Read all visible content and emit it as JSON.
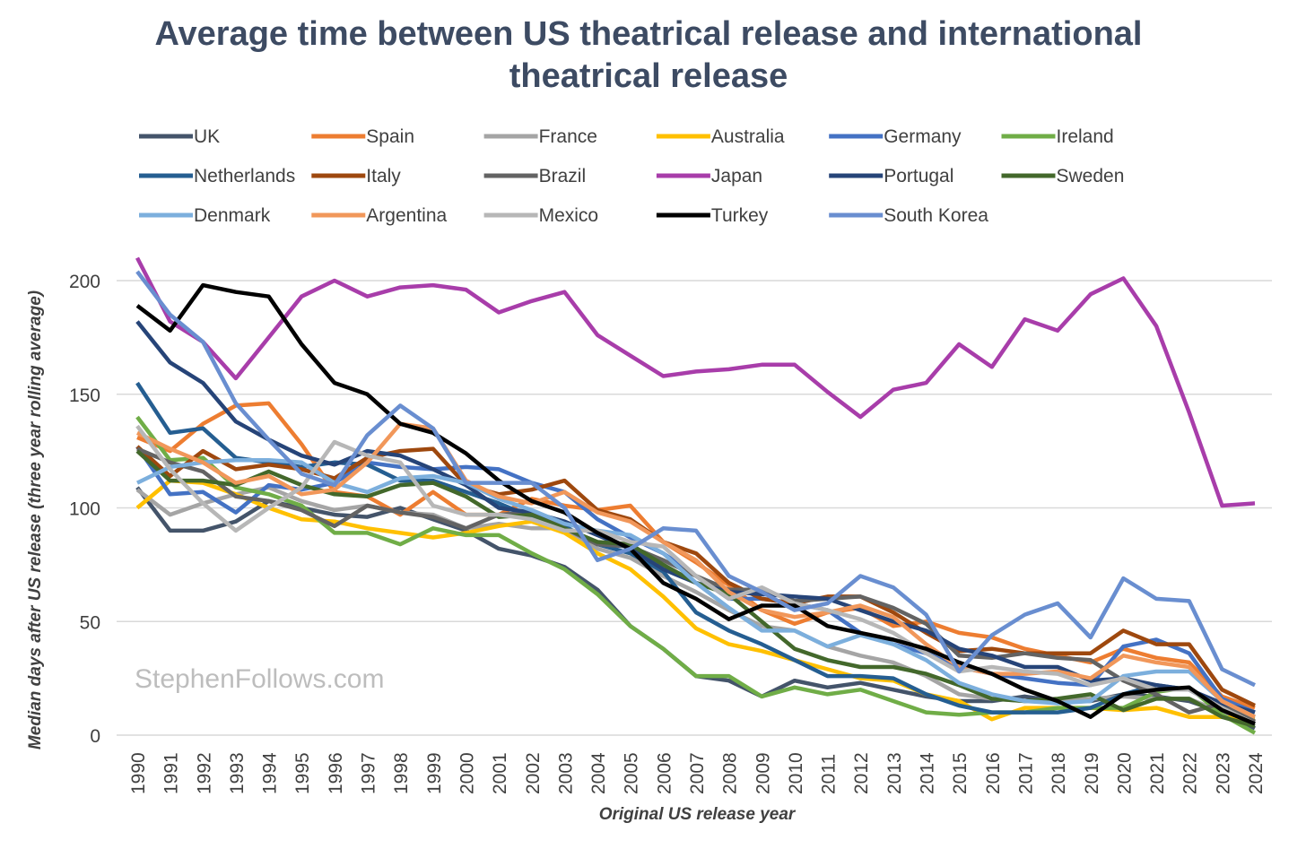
{
  "chart_data": {
    "type": "line",
    "title": "Average time between US theatrical release and international theatrical release",
    "title_lines": [
      "Average time between US theatrical release and international",
      "theatrical release"
    ],
    "xlabel": "Original US release year",
    "ylabel": "Median days after US release (three year rolling average)",
    "watermark": "StephenFollows.com",
    "ylim": [
      0,
      215
    ],
    "yticks": [
      0,
      50,
      100,
      150,
      200
    ],
    "grid": true,
    "legend_position": "top",
    "x": [
      1990,
      1991,
      1992,
      1993,
      1994,
      1995,
      1996,
      1997,
      1998,
      1999,
      2000,
      2001,
      2002,
      2003,
      2004,
      2005,
      2006,
      2007,
      2008,
      2009,
      2010,
      2011,
      2012,
      2013,
      2014,
      2015,
      2016,
      2017,
      2018,
      2019,
      2020,
      2021,
      2022,
      2023,
      2024
    ],
    "series": [
      {
        "name": "UK",
        "color": "#44546A",
        "values": [
          109,
          90,
          90,
          94,
          103,
          100,
          97,
          96,
          100,
          95,
          90,
          82,
          79,
          74,
          64,
          48,
          38,
          26,
          24,
          17,
          24,
          21,
          23,
          20,
          17,
          15,
          15,
          17,
          15,
          15,
          18,
          17,
          15,
          10,
          3
        ]
      },
      {
        "name": "Spain",
        "color": "#ED7D31",
        "values": [
          131,
          125,
          137,
          145,
          146,
          128,
          107,
          105,
          97,
          107,
          97,
          97,
          104,
          101,
          99,
          101,
          85,
          76,
          66,
          55,
          49,
          54,
          56,
          48,
          50,
          45,
          43,
          38,
          35,
          32,
          38,
          34,
          32,
          17,
          12
        ]
      },
      {
        "name": "France",
        "color": "#A5A5A5",
        "values": [
          108,
          97,
          102,
          106,
          109,
          103,
          99,
          101,
          98,
          97,
          91,
          93,
          91,
          91,
          82,
          78,
          70,
          63,
          55,
          48,
          46,
          39,
          35,
          32,
          26,
          18,
          16,
          15,
          15,
          16,
          17,
          16,
          16,
          10,
          5
        ]
      },
      {
        "name": "Australia",
        "color": "#FFC000",
        "values": [
          100,
          112,
          111,
          106,
          100,
          95,
          94,
          91,
          89,
          87,
          89,
          92,
          94,
          89,
          80,
          73,
          61,
          47,
          40,
          37,
          33,
          29,
          25,
          24,
          18,
          15,
          7,
          12,
          12,
          12,
          11,
          12,
          8,
          8,
          7
        ]
      },
      {
        "name": "Germany",
        "color": "#4472C4",
        "values": [
          127,
          106,
          107,
          98,
          110,
          108,
          111,
          120,
          118,
          117,
          118,
          117,
          111,
          107,
          95,
          87,
          80,
          70,
          60,
          60,
          58,
          55,
          45,
          40,
          36,
          30,
          27,
          25,
          23,
          22,
          39,
          42,
          36,
          16,
          10
        ]
      },
      {
        "name": "Ireland",
        "color": "#70AD47",
        "values": [
          140,
          121,
          122,
          109,
          106,
          101,
          89,
          89,
          84,
          91,
          88,
          88,
          80,
          73,
          62,
          48,
          38,
          26,
          26,
          17,
          21,
          18,
          20,
          15,
          10,
          9,
          10,
          10,
          12,
          12,
          12,
          19,
          21,
          9,
          1
        ]
      },
      {
        "name": "Netherlands",
        "color": "#255E91",
        "values": [
          155,
          133,
          135,
          122,
          120,
          118,
          120,
          119,
          112,
          112,
          107,
          102,
          96,
          92,
          84,
          80,
          72,
          54,
          46,
          40,
          33,
          26,
          26,
          25,
          18,
          13,
          10,
          10,
          10,
          12,
          18,
          22,
          20,
          12,
          8
        ]
      },
      {
        "name": "Italy",
        "color": "#9E480E",
        "values": [
          127,
          114,
          125,
          117,
          119,
          117,
          113,
          122,
          125,
          126,
          110,
          106,
          108,
          112,
          99,
          95,
          85,
          80,
          67,
          60,
          58,
          61,
          61,
          54,
          45,
          37,
          38,
          36,
          36,
          36,
          46,
          40,
          40,
          20,
          13
        ]
      },
      {
        "name": "Brazil",
        "color": "#636363",
        "values": [
          126,
          120,
          116,
          105,
          103,
          99,
          92,
          101,
          98,
          96,
          91,
          97,
          98,
          91,
          84,
          83,
          77,
          70,
          64,
          64,
          59,
          60,
          61,
          56,
          49,
          35,
          34,
          36,
          34,
          33,
          24,
          18,
          10,
          14,
          6
        ]
      },
      {
        "name": "Japan",
        "color": "#A83DAA",
        "values": [
          210,
          182,
          173,
          157,
          175,
          193,
          200,
          193,
          197,
          198,
          196,
          186,
          191,
          195,
          176,
          167,
          158,
          160,
          161,
          163,
          163,
          151,
          140,
          152,
          155,
          172,
          162,
          183,
          178,
          194,
          201,
          180,
          142,
          101,
          102
        ]
      },
      {
        "name": "Portugal",
        "color": "#264478",
        "values": [
          182,
          164,
          155,
          138,
          130,
          123,
          119,
          125,
          123,
          117,
          110,
          100,
          98,
          94,
          88,
          82,
          73,
          67,
          63,
          62,
          61,
          60,
          55,
          50,
          46,
          38,
          35,
          30,
          30,
          24,
          25,
          22,
          20,
          14,
          10
        ]
      },
      {
        "name": "Sweden",
        "color": "#43682B",
        "values": [
          125,
          112,
          112,
          110,
          116,
          110,
          106,
          105,
          110,
          111,
          105,
          96,
          97,
          91,
          85,
          84,
          75,
          67,
          62,
          50,
          38,
          33,
          30,
          30,
          27,
          22,
          16,
          15,
          16,
          18,
          11,
          16,
          16,
          8,
          4
        ]
      },
      {
        "name": "Denmark",
        "color": "#7CAFDD",
        "values": [
          111,
          118,
          120,
          121,
          121,
          120,
          111,
          107,
          113,
          114,
          111,
          104,
          99,
          93,
          90,
          88,
          80,
          67,
          56,
          46,
          46,
          39,
          44,
          40,
          33,
          23,
          18,
          15,
          14,
          15,
          26,
          28,
          28,
          15,
          8
        ]
      },
      {
        "name": "Argentina",
        "color": "#F1975A",
        "values": [
          133,
          126,
          120,
          111,
          114,
          106,
          108,
          120,
          137,
          135,
          112,
          105,
          102,
          107,
          98,
          94,
          85,
          77,
          63,
          55,
          52,
          54,
          57,
          52,
          40,
          30,
          27,
          27,
          28,
          25,
          35,
          32,
          30,
          15,
          8
        ]
      },
      {
        "name": "Mexico",
        "color": "#B7B7B7",
        "values": [
          136,
          117,
          102,
          90,
          100,
          109,
          129,
          123,
          120,
          101,
          97,
          97,
          95,
          90,
          90,
          85,
          83,
          70,
          60,
          65,
          58,
          55,
          51,
          45,
          36,
          28,
          30,
          28,
          27,
          22,
          25,
          20,
          20,
          12,
          5
        ]
      },
      {
        "name": "Turkey",
        "color": "#000000",
        "values": [
          189,
          178,
          198,
          195,
          193,
          172,
          155,
          150,
          137,
          133,
          124,
          112,
          103,
          98,
          89,
          82,
          67,
          60,
          51,
          57,
          57,
          48,
          45,
          42,
          38,
          32,
          27,
          20,
          15,
          8,
          18,
          20,
          21,
          11,
          5
        ]
      },
      {
        "name": "South Korea",
        "color": "#698ED0",
        "values": [
          204,
          185,
          173,
          146,
          130,
          115,
          110,
          132,
          145,
          135,
          111,
          111,
          111,
          100,
          77,
          82,
          91,
          90,
          70,
          63,
          55,
          58,
          70,
          65,
          53,
          28,
          44,
          53,
          58,
          43,
          69,
          60,
          59,
          29,
          22
        ]
      }
    ]
  }
}
